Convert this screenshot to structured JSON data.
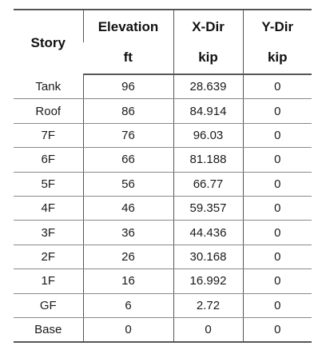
{
  "table": {
    "headers": {
      "story": "Story",
      "elevation": "Elevation",
      "xdir": "X-Dir",
      "ydir": "Y-Dir"
    },
    "units": {
      "elevation": "ft",
      "xdir": "kip",
      "ydir": "kip"
    },
    "rows": [
      {
        "story": "Tank",
        "elevation": "96",
        "xdir": "28.639",
        "ydir": "0"
      },
      {
        "story": "Roof",
        "elevation": "86",
        "xdir": "84.914",
        "ydir": "0"
      },
      {
        "story": "7F",
        "elevation": "76",
        "xdir": "96.03",
        "ydir": "0"
      },
      {
        "story": "6F",
        "elevation": "66",
        "xdir": "81.188",
        "ydir": "0"
      },
      {
        "story": "5F",
        "elevation": "56",
        "xdir": "66.77",
        "ydir": "0"
      },
      {
        "story": "4F",
        "elevation": "46",
        "xdir": "59.357",
        "ydir": "0"
      },
      {
        "story": "3F",
        "elevation": "36",
        "xdir": "44.436",
        "ydir": "0"
      },
      {
        "story": "2F",
        "elevation": "26",
        "xdir": "30.168",
        "ydir": "0"
      },
      {
        "story": "1F",
        "elevation": "16",
        "xdir": "16.992",
        "ydir": "0"
      },
      {
        "story": "GF",
        "elevation": "6",
        "xdir": "2.72",
        "ydir": "0"
      },
      {
        "story": "Base",
        "elevation": "0",
        "xdir": "0",
        "ydir": "0"
      }
    ]
  }
}
